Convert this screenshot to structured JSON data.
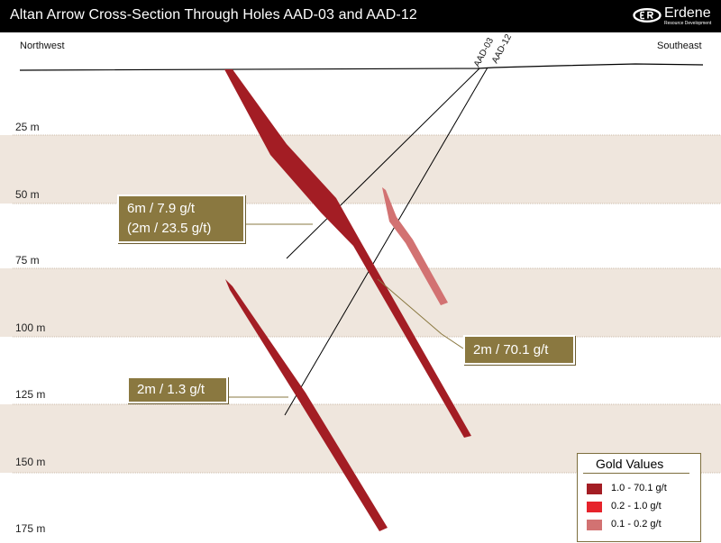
{
  "title": "Altan Arrow Cross-Section Through Holes AAD-03 and AAD-12",
  "logo": {
    "name": "Erdene",
    "subtitle": "Resource Development"
  },
  "directions": {
    "left": "Northwest",
    "right": "Southeast"
  },
  "holes": [
    {
      "name": "AAD-03"
    },
    {
      "name": "AAD-12"
    }
  ],
  "depth_labels": [
    "25 m",
    "50 m",
    "75 m",
    "100 m",
    "125 m",
    "150 m",
    "175 m"
  ],
  "callouts": [
    {
      "line1": "6m / 7.9 g/t",
      "line2": "(2m / 23.5 g/t)"
    },
    {
      "line1": "2m / 70.1 g/t"
    },
    {
      "line1": "2m / 1.3 g/t"
    }
  ],
  "legend": {
    "title": "Gold Values",
    "items": [
      {
        "label": "1.0 - 70.1 g/t",
        "color": "#a31d24"
      },
      {
        "label": "0.2 - 1.0 g/t",
        "color": "#e6232b"
      },
      {
        "label": "0.1 - 0.2 g/t",
        "color": "#d27272"
      }
    ]
  },
  "colors": {
    "band": "#efe6dd",
    "callout": "#8a7840",
    "high_grade": "#a31d24",
    "low_grade": "#d27272"
  }
}
